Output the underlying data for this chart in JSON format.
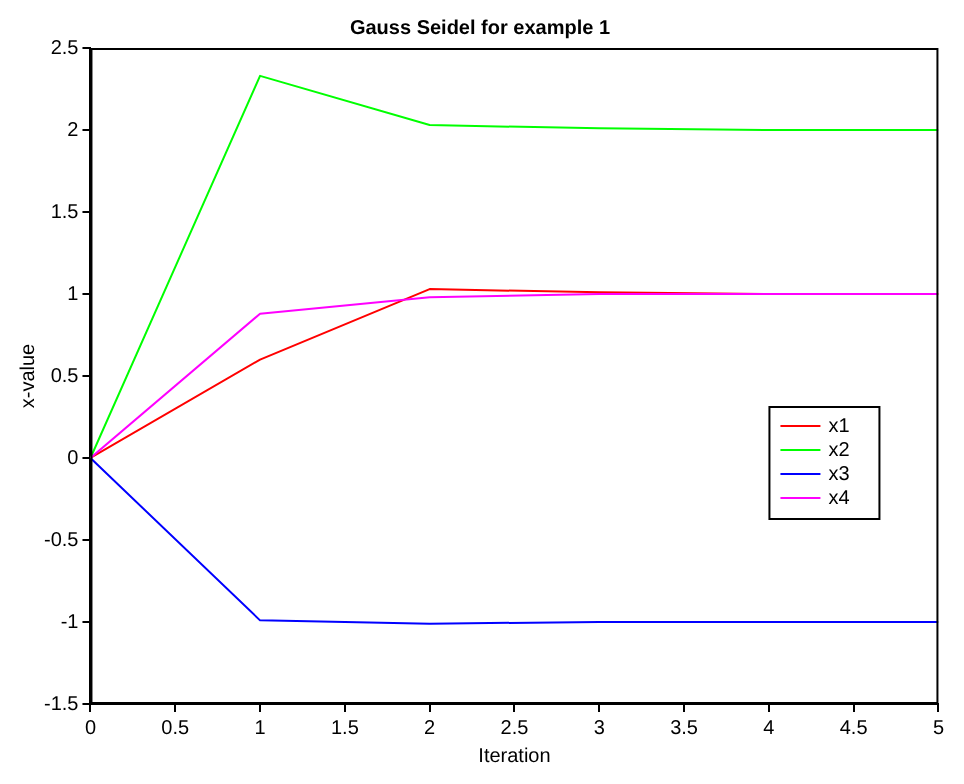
{
  "chart_data": {
    "type": "line",
    "title": "Gauss Seidel for example 1",
    "xlabel": "Iteration",
    "ylabel": "x-value",
    "x": [
      0,
      1,
      2,
      3,
      4,
      5
    ],
    "series": [
      {
        "name": "x1",
        "color": "#ff0000",
        "values": [
          0,
          0.6,
          1.03,
          1.01,
          1.0,
          1.0
        ]
      },
      {
        "name": "x2",
        "color": "#00ff00",
        "values": [
          0,
          2.33,
          2.03,
          2.01,
          2.0,
          2.0
        ]
      },
      {
        "name": "x3",
        "color": "#0000ff",
        "values": [
          0,
          -0.99,
          -1.01,
          -1.0,
          -1.0,
          -1.0
        ]
      },
      {
        "name": "x4",
        "color": "#ff00ff",
        "values": [
          0,
          0.88,
          0.98,
          1.0,
          1.0,
          1.0
        ]
      }
    ],
    "xlim": [
      0,
      5
    ],
    "xticks": [
      0,
      0.5,
      1,
      1.5,
      2,
      2.5,
      3,
      3.5,
      4,
      4.5,
      5
    ],
    "ylim": [
      -1.5,
      2.5
    ],
    "yticks": [
      -1.5,
      -1,
      -0.5,
      0,
      0.5,
      1,
      1.5,
      2,
      2.5
    ],
    "grid": false,
    "legend": "right",
    "marker": "none",
    "line_style": "solid"
  }
}
